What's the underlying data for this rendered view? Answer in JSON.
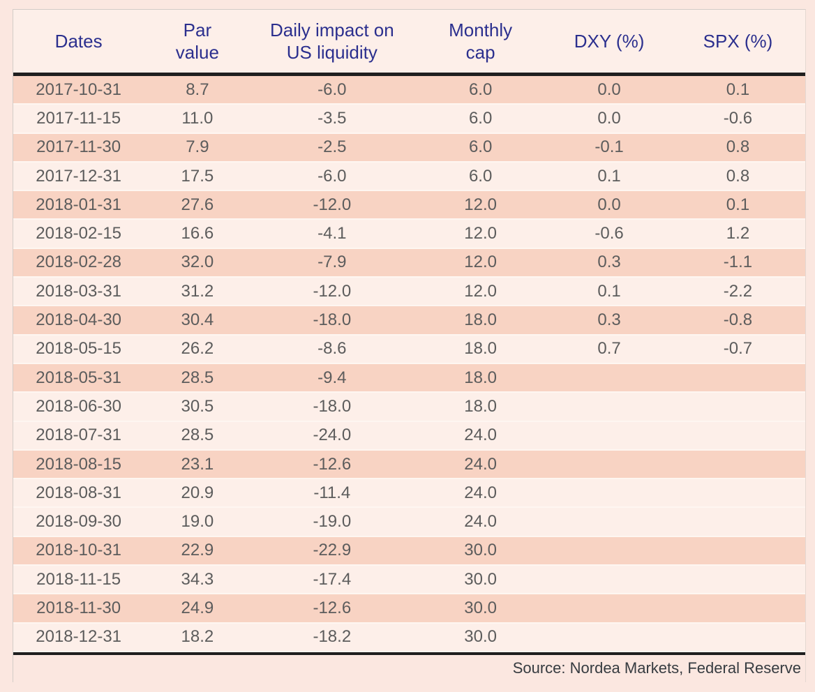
{
  "chart_data": {
    "type": "table",
    "title": "",
    "columns": [
      "Dates",
      "Par value",
      "Daily impact on US liquidity",
      "Monthly cap",
      "DXY (%)",
      "SPX (%)"
    ],
    "rows": [
      [
        "2017-10-31",
        8.7,
        -6.0,
        6.0,
        0.0,
        0.1
      ],
      [
        "2017-11-15",
        11.0,
        -3.5,
        6.0,
        0.0,
        -0.6
      ],
      [
        "2017-11-30",
        7.9,
        -2.5,
        6.0,
        -0.1,
        0.8
      ],
      [
        "2017-12-31",
        17.5,
        -6.0,
        6.0,
        0.1,
        0.8
      ],
      [
        "2018-01-31",
        27.6,
        -12.0,
        12.0,
        0.0,
        0.1
      ],
      [
        "2018-02-15",
        16.6,
        -4.1,
        12.0,
        -0.6,
        1.2
      ],
      [
        "2018-02-28",
        32.0,
        -7.9,
        12.0,
        0.3,
        -1.1
      ],
      [
        "2018-03-31",
        31.2,
        -12.0,
        12.0,
        0.1,
        -2.2
      ],
      [
        "2018-04-30",
        30.4,
        -18.0,
        18.0,
        0.3,
        -0.8
      ],
      [
        "2018-05-15",
        26.2,
        -8.6,
        18.0,
        0.7,
        -0.7
      ],
      [
        "2018-05-31",
        28.5,
        -9.4,
        18.0,
        null,
        null
      ],
      [
        "2018-06-30",
        30.5,
        -18.0,
        18.0,
        null,
        null
      ],
      [
        "2018-07-31",
        28.5,
        -24.0,
        24.0,
        null,
        null
      ],
      [
        "2018-08-15",
        23.1,
        -12.6,
        24.0,
        null,
        null
      ],
      [
        "2018-08-31",
        20.9,
        -11.4,
        24.0,
        null,
        null
      ],
      [
        "2018-09-30",
        19.0,
        -19.0,
        24.0,
        null,
        null
      ],
      [
        "2018-10-31",
        22.9,
        -22.9,
        30.0,
        null,
        null
      ],
      [
        "2018-11-15",
        34.3,
        -17.4,
        30.0,
        null,
        null
      ],
      [
        "2018-11-30",
        24.9,
        -12.6,
        30.0,
        null,
        null
      ],
      [
        "2018-12-31",
        18.2,
        -18.2,
        30.0,
        null,
        null
      ]
    ],
    "source": "Source: Nordea Markets, Federal Reserve"
  },
  "table": {
    "header": {
      "cells": [
        {
          "lines": [
            "Dates"
          ]
        },
        {
          "lines": [
            "Par",
            "value"
          ]
        },
        {
          "lines": [
            "Daily impact on",
            "US liquidity"
          ]
        },
        {
          "lines": [
            "Monthly",
            "cap"
          ]
        },
        {
          "lines": [
            "DXY (%)"
          ]
        },
        {
          "lines": [
            "SPX (%)"
          ]
        }
      ]
    },
    "rows": [
      {
        "date": "2017-10-31",
        "par": "8.7",
        "daily": "-6.0",
        "cap": "6.0",
        "dxy": "0.0",
        "spx": "0.1",
        "shaded": true
      },
      {
        "date": "2017-11-15",
        "par": "11.0",
        "daily": "-3.5",
        "cap": "6.0",
        "dxy": "0.0",
        "spx": "-0.6",
        "shaded": false
      },
      {
        "date": "2017-11-30",
        "par": "7.9",
        "daily": "-2.5",
        "cap": "6.0",
        "dxy": "-0.1",
        "spx": "0.8",
        "shaded": true
      },
      {
        "date": "2017-12-31",
        "par": "17.5",
        "daily": "-6.0",
        "cap": "6.0",
        "dxy": "0.1",
        "spx": "0.8",
        "shaded": false
      },
      {
        "date": "2018-01-31",
        "par": "27.6",
        "daily": "-12.0",
        "cap": "12.0",
        "dxy": "0.0",
        "spx": "0.1",
        "shaded": true
      },
      {
        "date": "2018-02-15",
        "par": "16.6",
        "daily": "-4.1",
        "cap": "12.0",
        "dxy": "-0.6",
        "spx": "1.2",
        "shaded": false
      },
      {
        "date": "2018-02-28",
        "par": "32.0",
        "daily": "-7.9",
        "cap": "12.0",
        "dxy": "0.3",
        "spx": "-1.1",
        "shaded": true
      },
      {
        "date": "2018-03-31",
        "par": "31.2",
        "daily": "-12.0",
        "cap": "12.0",
        "dxy": "0.1",
        "spx": "-2.2",
        "shaded": false
      },
      {
        "date": "2018-04-30",
        "par": "30.4",
        "daily": "-18.0",
        "cap": "18.0",
        "dxy": "0.3",
        "spx": "-0.8",
        "shaded": true
      },
      {
        "date": "2018-05-15",
        "par": "26.2",
        "daily": "-8.6",
        "cap": "18.0",
        "dxy": "0.7",
        "spx": "-0.7",
        "shaded": false
      },
      {
        "date": "2018-05-31",
        "par": "28.5",
        "daily": "-9.4",
        "cap": "18.0",
        "dxy": "",
        "spx": "",
        "shaded": true
      },
      {
        "date": "2018-06-30",
        "par": "30.5",
        "daily": "-18.0",
        "cap": "18.0",
        "dxy": "",
        "spx": "",
        "shaded": false
      },
      {
        "date": "2018-07-31",
        "par": "28.5",
        "daily": "-24.0",
        "cap": "24.0",
        "dxy": "",
        "spx": "",
        "shaded": false
      },
      {
        "date": "2018-08-15",
        "par": "23.1",
        "daily": "-12.6",
        "cap": "24.0",
        "dxy": "",
        "spx": "",
        "shaded": true
      },
      {
        "date": "2018-08-31",
        "par": "20.9",
        "daily": "-11.4",
        "cap": "24.0",
        "dxy": "",
        "spx": "",
        "shaded": false
      },
      {
        "date": "2018-09-30",
        "par": "19.0",
        "daily": "-19.0",
        "cap": "24.0",
        "dxy": "",
        "spx": "",
        "shaded": false
      },
      {
        "date": "2018-10-31",
        "par": "22.9",
        "daily": "-22.9",
        "cap": "30.0",
        "dxy": "",
        "spx": "",
        "shaded": true
      },
      {
        "date": "2018-11-15",
        "par": "34.3",
        "daily": "-17.4",
        "cap": "30.0",
        "dxy": "",
        "spx": "",
        "shaded": false
      },
      {
        "date": "2018-11-30",
        "par": "24.9",
        "daily": "-12.6",
        "cap": "30.0",
        "dxy": "",
        "spx": "",
        "shaded": true
      },
      {
        "date": "2018-12-31",
        "par": "18.2",
        "daily": "-18.2",
        "cap": "30.0",
        "dxy": "",
        "spx": "",
        "shaded": false
      }
    ],
    "source": "Source: Nordea Markets, Federal Reserve"
  },
  "colors": {
    "page_bg": "#fbe7e0",
    "row_light": "#fdefe9",
    "row_dark": "#f8d3c3",
    "header_text": "#2b2f8e",
    "data_text": "#5c5c5c",
    "source_text": "#363b40",
    "heavy_rule": "#1f1f1f",
    "thin_border": "#d3ccc7"
  }
}
